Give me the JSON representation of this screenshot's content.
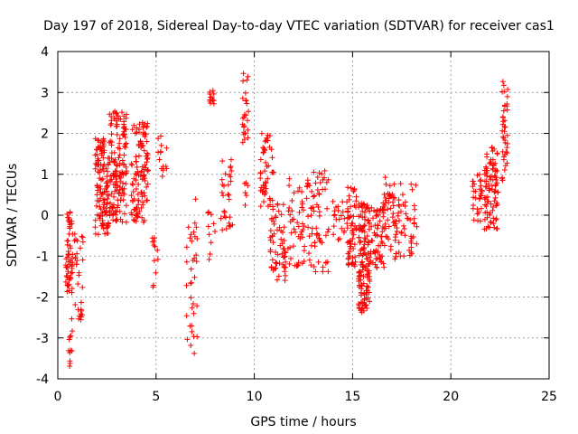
{
  "chart_data": {
    "type": "scatter",
    "title": "Day 197 of 2018, Sidereal Day-to-day VTEC variation (SDTVAR) for receiver cas1",
    "xlabel": "GPS time / hours",
    "ylabel": "SDTVAR / TECUs",
    "xlim": [
      0,
      25
    ],
    "ylim": [
      -4,
      4
    ],
    "xticks": [
      0,
      5,
      10,
      15,
      20,
      25
    ],
    "yticks": [
      -4,
      -3,
      -2,
      -1,
      0,
      1,
      2,
      3,
      4
    ],
    "xtick_labels": [
      "0",
      "5",
      "10",
      "15",
      "20",
      "25"
    ],
    "ytick_labels": [
      "-4",
      "-3",
      "-2",
      "-1",
      "0",
      "1",
      "2",
      "3",
      "4"
    ],
    "grid": true,
    "marker": "+",
    "color": "#ff0000",
    "clusters": [
      {
        "x": [
          0.4,
          0.75
        ],
        "y": [
          -1.9,
          0.1
        ],
        "n": 60
      },
      {
        "x": [
          0.55,
          0.75
        ],
        "y": [
          -3.7,
          -2.4
        ],
        "n": 12
      },
      {
        "x": [
          0.85,
          1.3
        ],
        "y": [
          -2.6,
          -0.3
        ],
        "n": 30
      },
      {
        "x": [
          1.9,
          2.6
        ],
        "y": [
          -0.5,
          1.9
        ],
        "n": 120
      },
      {
        "x": [
          2.6,
          3.5
        ],
        "y": [
          -0.2,
          2.6
        ],
        "n": 150
      },
      {
        "x": [
          3.7,
          4.6
        ],
        "y": [
          -0.2,
          2.3
        ],
        "n": 110
      },
      {
        "x": [
          4.8,
          5.1
        ],
        "y": [
          -1.9,
          -0.5
        ],
        "n": 12
      },
      {
        "x": [
          5.0,
          5.6
        ],
        "y": [
          0.9,
          2.3
        ],
        "n": 14
      },
      {
        "x": [
          6.5,
          7.1
        ],
        "y": [
          -3.4,
          0.6
        ],
        "n": 35
      },
      {
        "x": [
          7.7,
          7.95
        ],
        "y": [
          2.7,
          3.1
        ],
        "n": 12
      },
      {
        "x": [
          7.6,
          8.0
        ],
        "y": [
          -1.1,
          0.2
        ],
        "n": 10
      },
      {
        "x": [
          8.3,
          8.9
        ],
        "y": [
          -0.4,
          1.4
        ],
        "n": 30
      },
      {
        "x": [
          9.4,
          9.7
        ],
        "y": [
          1.5,
          3.5
        ],
        "n": 25
      },
      {
        "x": [
          9.5,
          9.7
        ],
        "y": [
          0.2,
          0.8
        ],
        "n": 6
      },
      {
        "x": [
          10.3,
          11.0
        ],
        "y": [
          0.2,
          2.0
        ],
        "n": 50
      },
      {
        "x": [
          10.8,
          11.6
        ],
        "y": [
          -1.6,
          0.3
        ],
        "n": 60
      },
      {
        "x": [
          11.7,
          12.8
        ],
        "y": [
          -1.3,
          0.9
        ],
        "n": 55
      },
      {
        "x": [
          12.8,
          13.8
        ],
        "y": [
          -1.5,
          1.1
        ],
        "n": 60
      },
      {
        "x": [
          14.0,
          14.6
        ],
        "y": [
          -0.7,
          0.4
        ],
        "n": 20
      },
      {
        "x": [
          14.7,
          15.2
        ],
        "y": [
          -1.3,
          0.7
        ],
        "n": 60
      },
      {
        "x": [
          15.3,
          15.9
        ],
        "y": [
          -2.4,
          0.3
        ],
        "n": 140
      },
      {
        "x": [
          15.9,
          16.6
        ],
        "y": [
          -1.3,
          0.3
        ],
        "n": 60
      },
      {
        "x": [
          16.6,
          17.3
        ],
        "y": [
          -1.1,
          1.1
        ],
        "n": 50
      },
      {
        "x": [
          17.3,
          18.3
        ],
        "y": [
          -1.0,
          0.8
        ],
        "n": 45
      },
      {
        "x": [
          21.1,
          21.6
        ],
        "y": [
          -0.3,
          1.0
        ],
        "n": 30
      },
      {
        "x": [
          21.7,
          22.4
        ],
        "y": [
          -0.4,
          1.7
        ],
        "n": 90
      },
      {
        "x": [
          22.6,
          22.9
        ],
        "y": [
          0.6,
          3.3
        ],
        "n": 40
      }
    ]
  }
}
